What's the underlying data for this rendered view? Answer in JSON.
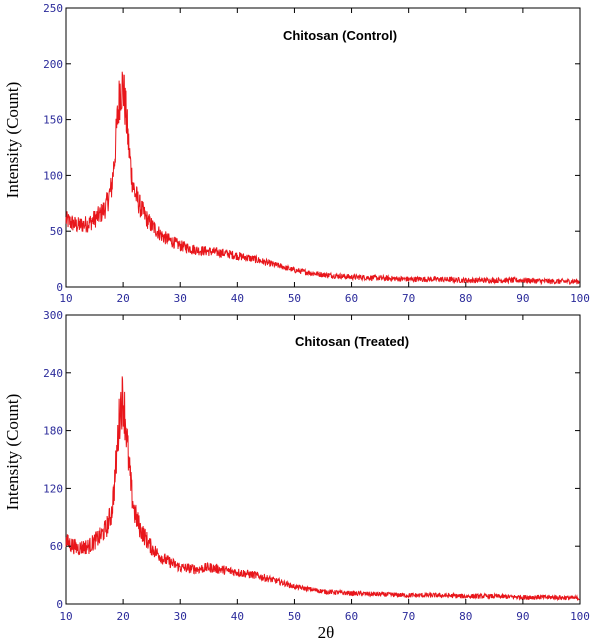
{
  "chart_data": [
    {
      "type": "line",
      "title": "Chitosan (Control)",
      "ylabel": "Intensity (Count)",
      "xlabel": "",
      "xlim": [
        10,
        100
      ],
      "ylim": [
        0,
        250
      ],
      "xticks": [
        10,
        20,
        30,
        40,
        50,
        60,
        70,
        80,
        90,
        100
      ],
      "yticks": [
        0,
        50,
        100,
        150,
        200,
        250
      ],
      "grid": false,
      "series": [
        {
          "color": "#e8161b",
          "x": [
            10,
            12,
            14,
            16,
            17,
            18,
            18.5,
            19,
            19.5,
            20,
            20.5,
            21,
            21.5,
            22,
            23,
            24,
            25,
            27,
            30,
            33,
            35,
            38,
            40,
            43,
            45,
            48,
            50,
            55,
            60,
            65,
            70,
            75,
            80,
            85,
            90,
            95,
            100
          ],
          "y": [
            60,
            55,
            57,
            65,
            72,
            90,
            115,
            150,
            178,
            180,
            155,
            125,
            100,
            85,
            72,
            62,
            55,
            45,
            37,
            33,
            32,
            30,
            28,
            25,
            22,
            18,
            15,
            11,
            9,
            8,
            7,
            7,
            6,
            6,
            6,
            5,
            5
          ]
        }
      ]
    },
    {
      "type": "line",
      "title": "Chitosan (Treated)",
      "ylabel": "Intensity (Count)",
      "xlabel": "2θ",
      "xlim": [
        10,
        100
      ],
      "ylim": [
        0,
        300
      ],
      "xticks": [
        10,
        20,
        30,
        40,
        50,
        60,
        70,
        80,
        90,
        100
      ],
      "yticks": [
        0,
        60,
        120,
        180,
        240,
        300
      ],
      "grid": false,
      "series": [
        {
          "color": "#e8161b",
          "x": [
            10,
            12,
            14,
            16,
            17,
            18,
            18.5,
            19,
            19.5,
            20,
            20.5,
            21,
            21.5,
            22,
            23,
            24,
            25,
            27,
            30,
            33,
            35,
            38,
            40,
            43,
            45,
            48,
            50,
            55,
            60,
            65,
            70,
            75,
            80,
            85,
            90,
            95,
            100
          ],
          "y": [
            65,
            58,
            60,
            70,
            78,
            95,
            125,
            165,
            205,
            215,
            185,
            145,
            115,
            95,
            78,
            68,
            58,
            47,
            38,
            36,
            38,
            35,
            33,
            30,
            27,
            22,
            18,
            13,
            11,
            10,
            9,
            9,
            8,
            8,
            7,
            7,
            6
          ]
        }
      ]
    }
  ]
}
